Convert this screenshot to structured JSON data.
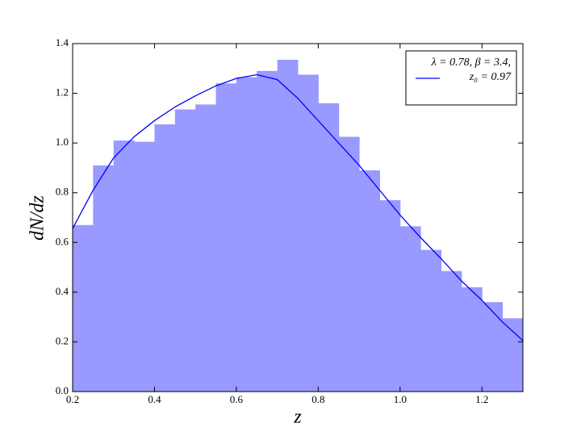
{
  "chart_data": {
    "type": "histogram",
    "xlabel": "z",
    "ylabel": "dN/dz",
    "bins": [
      0.2,
      0.25,
      0.3,
      0.35,
      0.4,
      0.45,
      0.5,
      0.55,
      0.6,
      0.65,
      0.7,
      0.75,
      0.8,
      0.85,
      0.9,
      0.95,
      1.0,
      1.05,
      1.1,
      1.15,
      1.2,
      1.25,
      1.3
    ],
    "values": [
      0.67,
      0.91,
      1.01,
      1.005,
      1.075,
      1.135,
      1.155,
      1.24,
      1.265,
      1.29,
      1.335,
      1.275,
      1.16,
      1.025,
      0.89,
      0.77,
      0.665,
      0.57,
      0.485,
      0.42,
      0.36,
      0.295
    ],
    "color": "#9999ff",
    "series": [
      {
        "name": "λ = 0.78, β = 3.4, z₀ = 0.97",
        "color": "#0000ff",
        "x": [
          0.2,
          0.25,
          0.3,
          0.35,
          0.4,
          0.45,
          0.5,
          0.55,
          0.6,
          0.65,
          0.7,
          0.75,
          0.8,
          0.85,
          0.9,
          0.95,
          1.0,
          1.05,
          1.1,
          1.15,
          1.2,
          1.25,
          1.3
        ],
        "values": [
          0.656,
          0.81,
          0.94,
          1.025,
          1.09,
          1.145,
          1.19,
          1.23,
          1.26,
          1.275,
          1.255,
          1.18,
          1.09,
          1.0,
          0.91,
          0.81,
          0.71,
          0.62,
          0.535,
          0.445,
          0.367,
          0.28,
          0.205
        ]
      }
    ],
    "xlim": [
      0.2,
      1.3
    ],
    "ylim": [
      0,
      1.4
    ],
    "xticks": [
      0.2,
      0.4,
      0.6,
      0.8,
      {
        "value": 1,
        "label": "1.0"
      },
      1.2
    ],
    "yticks": [
      {
        "value": 0,
        "label": "0.0"
      },
      0.2,
      0.4,
      0.6,
      0.8,
      {
        "value": 1,
        "label": "1.0"
      },
      1.2,
      1.4
    ],
    "legend": "upper right"
  }
}
